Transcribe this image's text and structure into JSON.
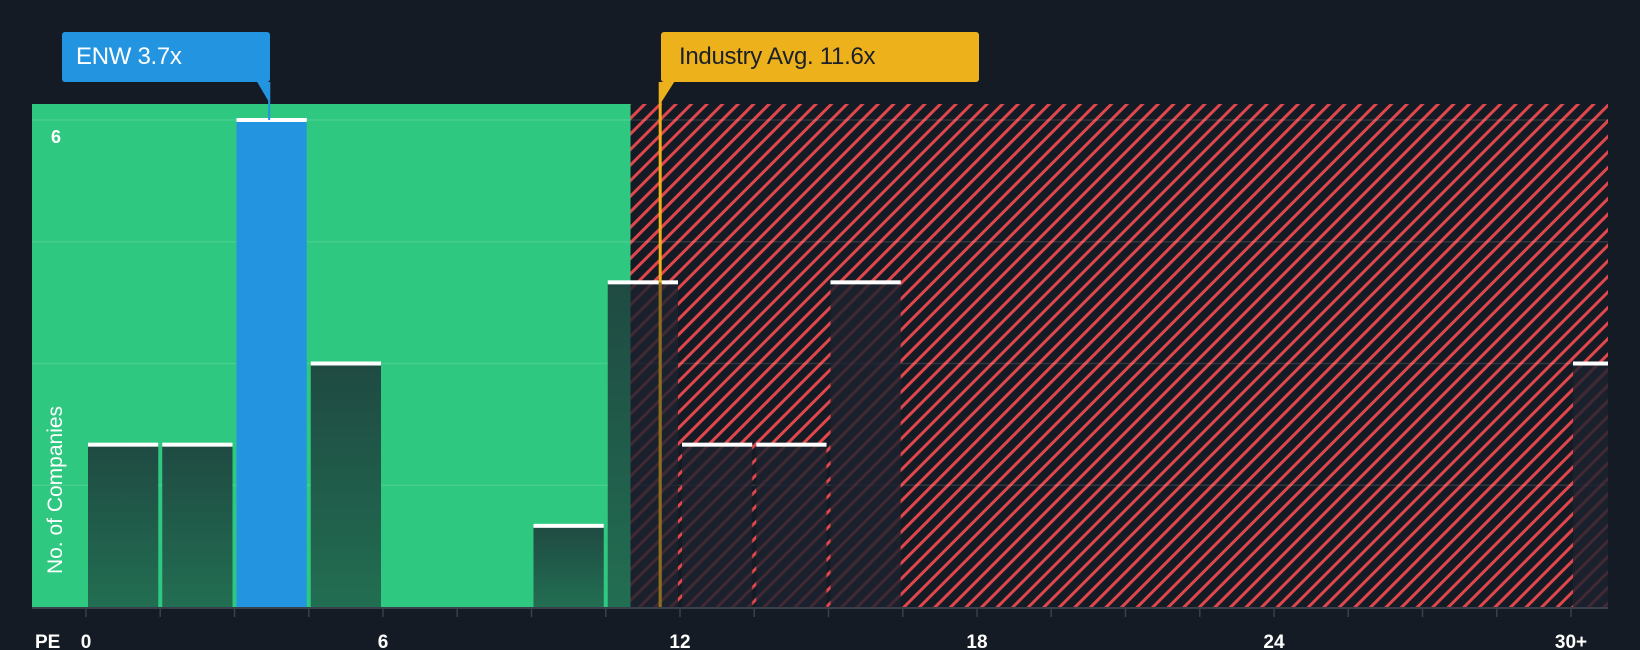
{
  "colors": {
    "background": "#151b24",
    "undervalued_zone": "#2ec880",
    "overvalued_hatch": "#e0474c",
    "company_bar": "#2394e0",
    "other_bar_green": "#1f5a48",
    "other_bar_dark": "#1d2230",
    "industry_line": "#ecb11b",
    "bar_cap": "#ffffff"
  },
  "labels": {
    "company_callout": "ENW 3.7x",
    "industry_callout": "Industry Avg. 11.6x",
    "y_axis_label": "No. of Companies",
    "x_axis_prefix": "PE",
    "y_tick_top": "6"
  },
  "chart_data": {
    "type": "bar",
    "title": "",
    "xlabel": "PE",
    "ylabel": "No. of Companies",
    "x_ticks": [
      "0",
      "6",
      "12",
      "18",
      "24",
      "30+"
    ],
    "x_tick_values": [
      0,
      6,
      12,
      18,
      24,
      30
    ],
    "y_ticks": [
      "6"
    ],
    "ylim": [
      0,
      6
    ],
    "xlim": [
      0,
      31.5
    ],
    "bin_width": 1.5,
    "grid": true,
    "categories": [
      "0-1.5",
      "1.5-3",
      "3-4.5",
      "4.5-6",
      "9-10.5",
      "10.5-12",
      "12-13.5",
      "13.5-15",
      "15-16.5",
      "30+"
    ],
    "bins": [
      {
        "from": 0,
        "to": 1.5,
        "count": 2
      },
      {
        "from": 1.5,
        "to": 3,
        "count": 2
      },
      {
        "from": 3,
        "to": 4.5,
        "count": 6,
        "highlight": true
      },
      {
        "from": 4.5,
        "to": 6,
        "count": 3
      },
      {
        "from": 9,
        "to": 10.5,
        "count": 1
      },
      {
        "from": 10.5,
        "to": 12,
        "count": 4
      },
      {
        "from": 12,
        "to": 13.5,
        "count": 2
      },
      {
        "from": 13.5,
        "to": 15,
        "count": 2
      },
      {
        "from": 15,
        "to": 16.5,
        "count": 4
      },
      {
        "from": 30,
        "to": 31.5,
        "count": 3
      }
    ],
    "values": [
      2,
      2,
      6,
      3,
      1,
      4,
      2,
      2,
      4,
      3
    ],
    "company": {
      "name": "ENW",
      "pe": 3.7
    },
    "industry_avg": 11.6,
    "undervalued_threshold": 11.0,
    "annotations": [
      "ENW 3.7x",
      "Industry Avg. 11.6x"
    ]
  }
}
